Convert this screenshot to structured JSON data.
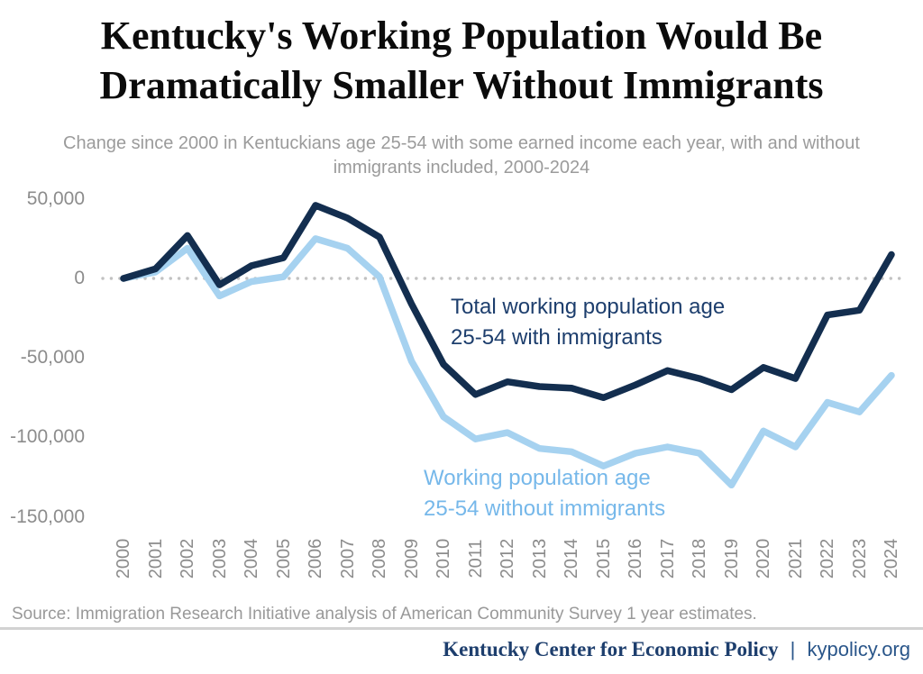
{
  "title": {
    "line1": "Kentucky's Working Population Would Be",
    "line2": "Dramatically Smaller Without Immigrants"
  },
  "subtitle": {
    "line1": "Change since 2000 in Kentuckians age 25-54 with some earned income each year, with and without",
    "line2": "immigrants included, 2000-2024"
  },
  "chart_data": {
    "type": "line",
    "x": [
      "2000",
      "2001",
      "2002",
      "2003",
      "2004",
      "2005",
      "2006",
      "2007",
      "2008",
      "2009",
      "2010",
      "2011",
      "2012",
      "2013",
      "2014",
      "2015",
      "2016",
      "2017",
      "2018",
      "2019",
      "2020",
      "2021",
      "2022",
      "2023",
      "2024"
    ],
    "series": [
      {
        "id": "with-immigrants",
        "name": "Total working population age 25-54 with immigrants",
        "color": "#132e4f",
        "values": [
          0,
          6000,
          27000,
          -4000,
          8000,
          13000,
          46000,
          38000,
          26000,
          -16000,
          -54000,
          -73000,
          -65000,
          -68000,
          -69000,
          -75000,
          -67000,
          -58000,
          -63000,
          -70000,
          -56000,
          -63000,
          -23000,
          -20000,
          15000
        ]
      },
      {
        "id": "without-immigrants",
        "name": "Working population age 25-54 without immigrants",
        "color": "#a6d2f0",
        "values": [
          0,
          4000,
          19000,
          -11000,
          -2000,
          1000,
          25000,
          19000,
          1000,
          -52000,
          -87000,
          -101000,
          -97000,
          -107000,
          -109000,
          -118000,
          -110000,
          -106000,
          -110000,
          -130000,
          -96000,
          -106000,
          -78000,
          -84000,
          -61000
        ]
      }
    ],
    "y_ticks": [
      {
        "label": "50,000",
        "value": 50000
      },
      {
        "label": "0",
        "value": 0
      },
      {
        "label": "-50,000",
        "value": -50000
      },
      {
        "label": "-100,000",
        "value": -100000
      },
      {
        "label": "-150,000",
        "value": -150000
      }
    ],
    "ylim": [
      -150000,
      50000
    ],
    "grid": false,
    "legend_position": "inline-annotations",
    "baseline": {
      "value": 0,
      "style": "dotted",
      "color": "#c2c2c2"
    },
    "annotations": [
      {
        "id": "with",
        "line1": "Total working population age",
        "line2": "25-54 with immigrants",
        "color": "#1d3e6d"
      },
      {
        "id": "without",
        "line1": "Working population age",
        "line2": "25-54 without immigrants",
        "color": "#76b8ea"
      }
    ]
  },
  "source": {
    "text": "Source: Immigration Research Initiative analysis of American Community Survey 1 year estimates."
  },
  "footer": {
    "org": "Kentucky Center for Economic Policy",
    "separator": "|",
    "site": "kypolicy.org",
    "org_color": "#1d3e6d",
    "site_color": "#2a568a"
  }
}
